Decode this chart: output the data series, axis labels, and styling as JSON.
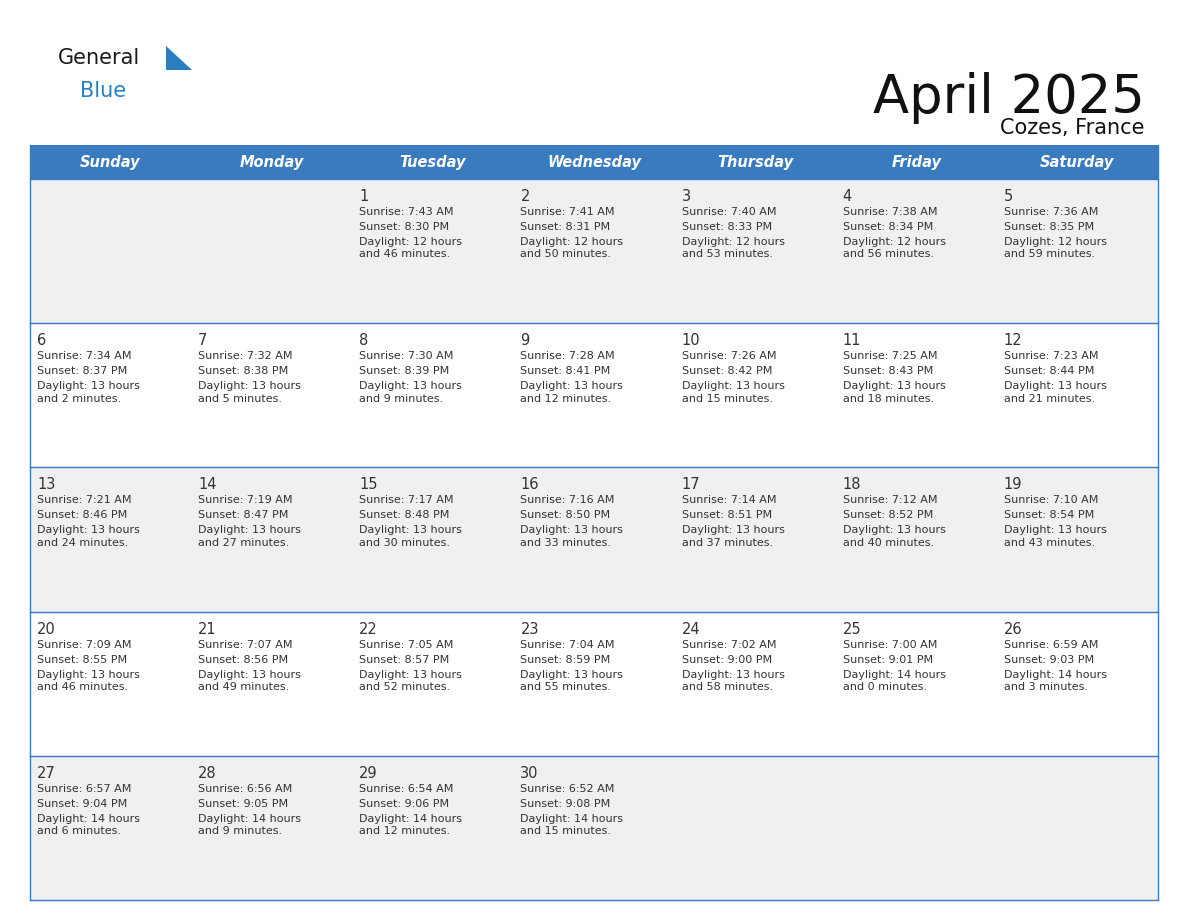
{
  "title": "April 2025",
  "subtitle": "Cozes, France",
  "header_bg": "#3a7abf",
  "header_text_color": "#ffffff",
  "days_of_week": [
    "Sunday",
    "Monday",
    "Tuesday",
    "Wednesday",
    "Thursday",
    "Friday",
    "Saturday"
  ],
  "row_bg_odd": "#f0f0f0",
  "row_bg_even": "#ffffff",
  "cell_text_color": "#333333",
  "border_color": "#3a7abf",
  "logo_general_color": "#1a1a1a",
  "logo_blue_color": "#2a7fc1",
  "calendar": [
    [
      {
        "day": null,
        "sunrise": null,
        "sunset": null,
        "daylight": null
      },
      {
        "day": null,
        "sunrise": null,
        "sunset": null,
        "daylight": null
      },
      {
        "day": "1",
        "sunrise": "7:43 AM",
        "sunset": "8:30 PM",
        "daylight": "12 hours\nand 46 minutes."
      },
      {
        "day": "2",
        "sunrise": "7:41 AM",
        "sunset": "8:31 PM",
        "daylight": "12 hours\nand 50 minutes."
      },
      {
        "day": "3",
        "sunrise": "7:40 AM",
        "sunset": "8:33 PM",
        "daylight": "12 hours\nand 53 minutes."
      },
      {
        "day": "4",
        "sunrise": "7:38 AM",
        "sunset": "8:34 PM",
        "daylight": "12 hours\nand 56 minutes."
      },
      {
        "day": "5",
        "sunrise": "7:36 AM",
        "sunset": "8:35 PM",
        "daylight": "12 hours\nand 59 minutes."
      }
    ],
    [
      {
        "day": "6",
        "sunrise": "7:34 AM",
        "sunset": "8:37 PM",
        "daylight": "13 hours\nand 2 minutes."
      },
      {
        "day": "7",
        "sunrise": "7:32 AM",
        "sunset": "8:38 PM",
        "daylight": "13 hours\nand 5 minutes."
      },
      {
        "day": "8",
        "sunrise": "7:30 AM",
        "sunset": "8:39 PM",
        "daylight": "13 hours\nand 9 minutes."
      },
      {
        "day": "9",
        "sunrise": "7:28 AM",
        "sunset": "8:41 PM",
        "daylight": "13 hours\nand 12 minutes."
      },
      {
        "day": "10",
        "sunrise": "7:26 AM",
        "sunset": "8:42 PM",
        "daylight": "13 hours\nand 15 minutes."
      },
      {
        "day": "11",
        "sunrise": "7:25 AM",
        "sunset": "8:43 PM",
        "daylight": "13 hours\nand 18 minutes."
      },
      {
        "day": "12",
        "sunrise": "7:23 AM",
        "sunset": "8:44 PM",
        "daylight": "13 hours\nand 21 minutes."
      }
    ],
    [
      {
        "day": "13",
        "sunrise": "7:21 AM",
        "sunset": "8:46 PM",
        "daylight": "13 hours\nand 24 minutes."
      },
      {
        "day": "14",
        "sunrise": "7:19 AM",
        "sunset": "8:47 PM",
        "daylight": "13 hours\nand 27 minutes."
      },
      {
        "day": "15",
        "sunrise": "7:17 AM",
        "sunset": "8:48 PM",
        "daylight": "13 hours\nand 30 minutes."
      },
      {
        "day": "16",
        "sunrise": "7:16 AM",
        "sunset": "8:50 PM",
        "daylight": "13 hours\nand 33 minutes."
      },
      {
        "day": "17",
        "sunrise": "7:14 AM",
        "sunset": "8:51 PM",
        "daylight": "13 hours\nand 37 minutes."
      },
      {
        "day": "18",
        "sunrise": "7:12 AM",
        "sunset": "8:52 PM",
        "daylight": "13 hours\nand 40 minutes."
      },
      {
        "day": "19",
        "sunrise": "7:10 AM",
        "sunset": "8:54 PM",
        "daylight": "13 hours\nand 43 minutes."
      }
    ],
    [
      {
        "day": "20",
        "sunrise": "7:09 AM",
        "sunset": "8:55 PM",
        "daylight": "13 hours\nand 46 minutes."
      },
      {
        "day": "21",
        "sunrise": "7:07 AM",
        "sunset": "8:56 PM",
        "daylight": "13 hours\nand 49 minutes."
      },
      {
        "day": "22",
        "sunrise": "7:05 AM",
        "sunset": "8:57 PM",
        "daylight": "13 hours\nand 52 minutes."
      },
      {
        "day": "23",
        "sunrise": "7:04 AM",
        "sunset": "8:59 PM",
        "daylight": "13 hours\nand 55 minutes."
      },
      {
        "day": "24",
        "sunrise": "7:02 AM",
        "sunset": "9:00 PM",
        "daylight": "13 hours\nand 58 minutes."
      },
      {
        "day": "25",
        "sunrise": "7:00 AM",
        "sunset": "9:01 PM",
        "daylight": "14 hours\nand 0 minutes."
      },
      {
        "day": "26",
        "sunrise": "6:59 AM",
        "sunset": "9:03 PM",
        "daylight": "14 hours\nand 3 minutes."
      }
    ],
    [
      {
        "day": "27",
        "sunrise": "6:57 AM",
        "sunset": "9:04 PM",
        "daylight": "14 hours\nand 6 minutes."
      },
      {
        "day": "28",
        "sunrise": "6:56 AM",
        "sunset": "9:05 PM",
        "daylight": "14 hours\nand 9 minutes."
      },
      {
        "day": "29",
        "sunrise": "6:54 AM",
        "sunset": "9:06 PM",
        "daylight": "14 hours\nand 12 minutes."
      },
      {
        "day": "30",
        "sunrise": "6:52 AM",
        "sunset": "9:08 PM",
        "daylight": "14 hours\nand 15 minutes."
      },
      {
        "day": null,
        "sunrise": null,
        "sunset": null,
        "daylight": null
      },
      {
        "day": null,
        "sunrise": null,
        "sunset": null,
        "daylight": null
      },
      {
        "day": null,
        "sunrise": null,
        "sunset": null,
        "daylight": null
      }
    ]
  ]
}
